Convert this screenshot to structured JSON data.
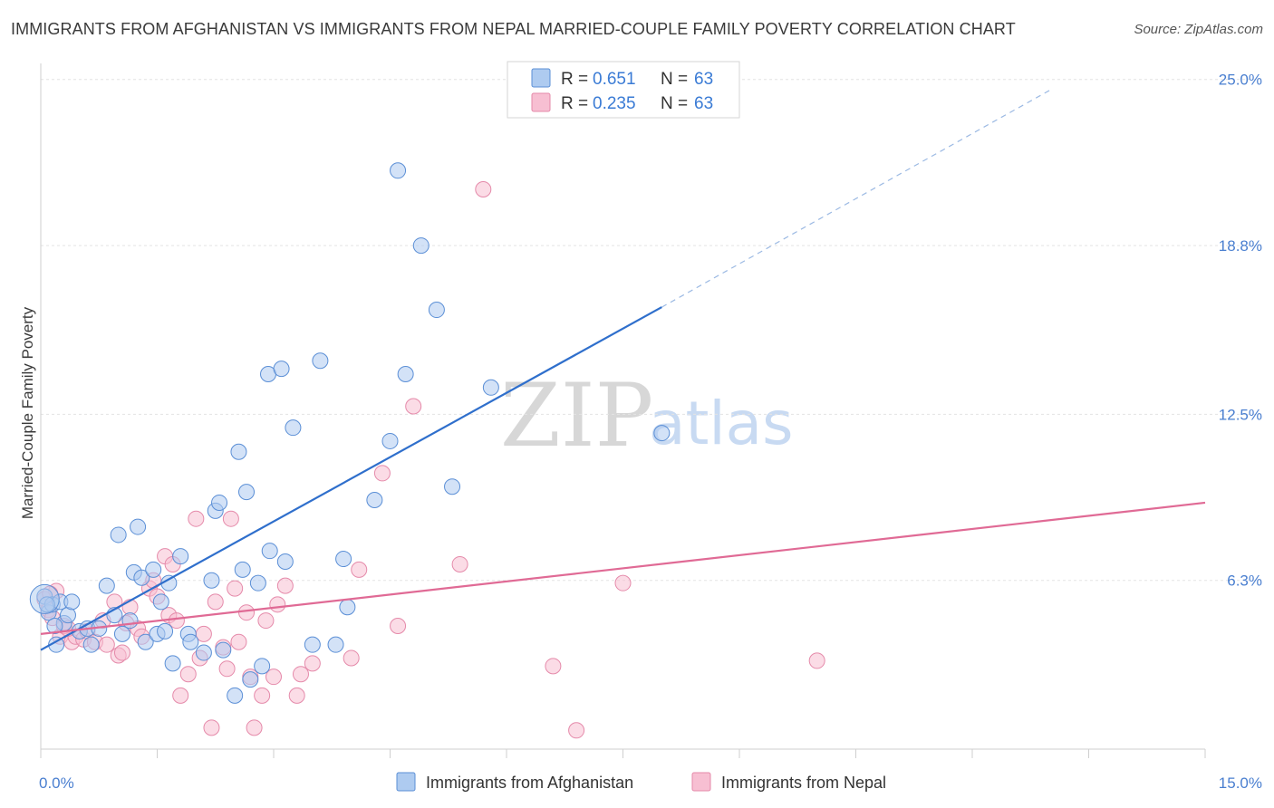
{
  "header": {
    "title": "IMMIGRANTS FROM AFGHANISTAN VS IMMIGRANTS FROM NEPAL MARRIED-COUPLE FAMILY POVERTY CORRELATION CHART",
    "source": "Source: ZipAtlas.com"
  },
  "watermark": {
    "zip": "ZIP",
    "atlas": "atlas"
  },
  "legend": {
    "r_label": "R =",
    "n_label": "N =",
    "items": [
      {
        "r": "0.651",
        "n": "63"
      },
      {
        "r": "0.235",
        "n": "63"
      }
    ]
  },
  "bottom_legend": {
    "items": [
      "Immigrants from Afghanistan",
      "Immigrants from Nepal"
    ]
  },
  "colors": {
    "afghanistan_fill": "#aecbf0",
    "afghanistan_stroke": "#5b8fd6",
    "afghanistan_line": "#2f6fcc",
    "nepal_fill": "#f7bfd2",
    "nepal_stroke": "#e58aaa",
    "nepal_line": "#e06a95"
  },
  "chart_data": {
    "type": "scatter",
    "title": "IMMIGRANTS FROM AFGHANISTAN VS IMMIGRANTS FROM NEPAL MARRIED-COUPLE FAMILY POVERTY CORRELATION CHART",
    "xlabel": "",
    "ylabel": "Married-Couple Family Poverty",
    "xlim": [
      0,
      15
    ],
    "ylim": [
      0,
      25.6
    ],
    "x_tick_labels": [
      "0.0%",
      "15.0%"
    ],
    "y_tick_labels": [
      "6.3%",
      "12.5%",
      "18.8%",
      "25.0%"
    ],
    "y_ticks": [
      6.3,
      12.5,
      18.8,
      25.0
    ],
    "grid": true,
    "legend_position": "top-center",
    "series": [
      {
        "name": "Immigrants from Afghanistan",
        "r": 0.651,
        "n": 63,
        "trend": {
          "x0": 0.0,
          "y0": 3.7,
          "x1": 8.0,
          "y1": 16.5,
          "dashed_to_x": 13.0,
          "dashed_to_y": 24.6
        },
        "points": [
          [
            0.05,
            5.7
          ],
          [
            0.1,
            5.1
          ],
          [
            0.15,
            5.4
          ],
          [
            0.2,
            3.9
          ],
          [
            0.25,
            5.5
          ],
          [
            0.3,
            4.7
          ],
          [
            0.35,
            5.0
          ],
          [
            0.4,
            5.5
          ],
          [
            0.5,
            4.4
          ],
          [
            0.6,
            4.5
          ],
          [
            0.65,
            3.9
          ],
          [
            0.75,
            4.5
          ],
          [
            0.85,
            6.1
          ],
          [
            0.95,
            5.0
          ],
          [
            1.0,
            8.0
          ],
          [
            1.05,
            4.3
          ],
          [
            1.15,
            4.8
          ],
          [
            1.2,
            6.6
          ],
          [
            1.25,
            8.3
          ],
          [
            1.3,
            6.4
          ],
          [
            1.35,
            4.0
          ],
          [
            1.45,
            6.7
          ],
          [
            1.5,
            4.3
          ],
          [
            1.55,
            5.5
          ],
          [
            1.6,
            4.4
          ],
          [
            1.65,
            6.2
          ],
          [
            1.7,
            3.2
          ],
          [
            1.8,
            7.2
          ],
          [
            1.9,
            4.3
          ],
          [
            1.93,
            4.0
          ],
          [
            2.1,
            3.6
          ],
          [
            2.2,
            6.3
          ],
          [
            2.25,
            8.9
          ],
          [
            2.3,
            9.2
          ],
          [
            2.35,
            3.7
          ],
          [
            2.5,
            2.0
          ],
          [
            2.55,
            11.1
          ],
          [
            2.6,
            6.7
          ],
          [
            2.65,
            9.6
          ],
          [
            2.7,
            2.6
          ],
          [
            2.8,
            6.2
          ],
          [
            2.85,
            3.1
          ],
          [
            2.93,
            14.0
          ],
          [
            2.95,
            7.4
          ],
          [
            3.1,
            14.2
          ],
          [
            3.15,
            7.0
          ],
          [
            3.25,
            12.0
          ],
          [
            3.5,
            3.9
          ],
          [
            3.6,
            14.5
          ],
          [
            3.8,
            3.9
          ],
          [
            3.9,
            7.1
          ],
          [
            3.95,
            5.3
          ],
          [
            4.3,
            9.3
          ],
          [
            4.5,
            11.5
          ],
          [
            4.6,
            21.6
          ],
          [
            4.7,
            14.0
          ],
          [
            4.9,
            18.8
          ],
          [
            5.1,
            16.4
          ],
          [
            5.3,
            9.8
          ],
          [
            5.8,
            13.5
          ],
          [
            8.0,
            11.8
          ],
          [
            0.08,
            5.4
          ],
          [
            0.18,
            4.6
          ]
        ]
      },
      {
        "name": "Immigrants from Nepal",
        "r": 0.235,
        "n": 63,
        "trend": {
          "x0": 0.0,
          "y0": 4.3,
          "x1": 15.0,
          "y1": 9.2
        },
        "points": [
          [
            0.05,
            5.6
          ],
          [
            0.1,
            5.2
          ],
          [
            0.15,
            4.9
          ],
          [
            0.2,
            5.9
          ],
          [
            0.25,
            4.2
          ],
          [
            0.3,
            4.6
          ],
          [
            0.4,
            4.0
          ],
          [
            0.45,
            4.2
          ],
          [
            0.55,
            4.1
          ],
          [
            0.6,
            4.4
          ],
          [
            0.7,
            4.0
          ],
          [
            0.8,
            4.8
          ],
          [
            0.85,
            3.9
          ],
          [
            0.95,
            5.5
          ],
          [
            1.0,
            3.5
          ],
          [
            1.05,
            3.6
          ],
          [
            1.1,
            4.7
          ],
          [
            1.15,
            5.3
          ],
          [
            1.25,
            4.5
          ],
          [
            1.3,
            4.2
          ],
          [
            1.4,
            6.0
          ],
          [
            1.45,
            6.3
          ],
          [
            1.5,
            5.7
          ],
          [
            1.6,
            7.2
          ],
          [
            1.65,
            5.0
          ],
          [
            1.7,
            6.9
          ],
          [
            1.75,
            4.8
          ],
          [
            1.8,
            2.0
          ],
          [
            1.9,
            2.8
          ],
          [
            2.0,
            8.6
          ],
          [
            2.05,
            3.4
          ],
          [
            2.1,
            4.3
          ],
          [
            2.2,
            0.8
          ],
          [
            2.25,
            5.5
          ],
          [
            2.35,
            3.8
          ],
          [
            2.4,
            3.0
          ],
          [
            2.45,
            8.6
          ],
          [
            2.5,
            6.0
          ],
          [
            2.55,
            4.0
          ],
          [
            2.65,
            5.1
          ],
          [
            2.7,
            2.7
          ],
          [
            2.75,
            0.8
          ],
          [
            2.85,
            2.0
          ],
          [
            2.9,
            4.8
          ],
          [
            3.0,
            2.7
          ],
          [
            3.05,
            5.4
          ],
          [
            3.15,
            6.1
          ],
          [
            3.3,
            2.0
          ],
          [
            3.35,
            2.8
          ],
          [
            3.5,
            3.2
          ],
          [
            4.0,
            3.4
          ],
          [
            4.1,
            6.7
          ],
          [
            4.4,
            10.3
          ],
          [
            4.6,
            4.6
          ],
          [
            4.8,
            12.8
          ],
          [
            5.4,
            6.9
          ],
          [
            5.7,
            20.9
          ],
          [
            6.6,
            3.1
          ],
          [
            6.9,
            0.7
          ],
          [
            7.5,
            6.2
          ],
          [
            10.0,
            3.3
          ],
          [
            0.12,
            5.8
          ],
          [
            0.35,
            4.5
          ]
        ]
      }
    ]
  }
}
